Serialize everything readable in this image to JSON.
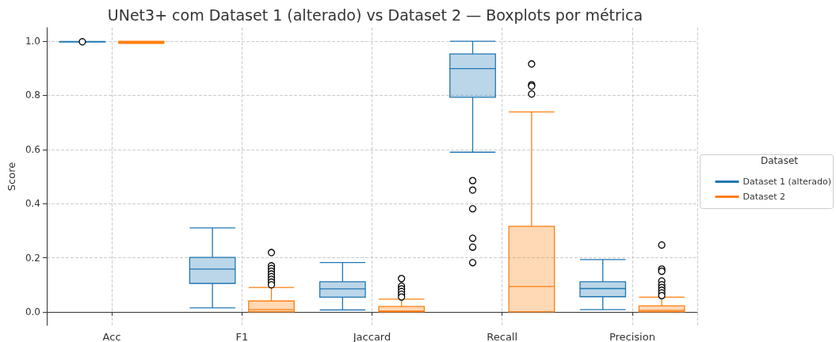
{
  "chart_data": {
    "type": "box",
    "title": "UNet3+ com Dataset 1 (alterado) vs Dataset 2 — Boxplots por métrica",
    "ylabel": "Score",
    "legend_title": "Dataset",
    "categories": [
      "Acc",
      "F1",
      "Jaccard",
      "Recall",
      "Precision"
    ],
    "series": [
      {
        "name": "Dataset 1 (alterado)",
        "color": "#1f77b4",
        "boxes": [
          {
            "low": 0.997,
            "q1": 0.997,
            "median": 0.998,
            "q3": 0.998,
            "high": 0.999,
            "outliers": [
              0.998
            ]
          },
          {
            "low": 0.015,
            "q1": 0.105,
            "median": 0.158,
            "q3": 0.201,
            "high": 0.31
          },
          {
            "low": 0.007,
            "q1": 0.054,
            "median": 0.085,
            "q3": 0.111,
            "high": 0.182
          },
          {
            "low": 0.59,
            "q1": 0.793,
            "median": 0.899,
            "q3": 0.953,
            "high": 1.0,
            "outliers": [
              0.485,
              0.45,
              0.381,
              0.272,
              0.239,
              0.182
            ]
          },
          {
            "low": 0.008,
            "q1": 0.056,
            "median": 0.086,
            "q3": 0.111,
            "high": 0.193
          }
        ]
      },
      {
        "name": "Dataset 2",
        "color": "#ff7f0e",
        "boxes": [
          {
            "low": 0.992,
            "q1": 0.994,
            "median": 0.997,
            "q3": 0.999,
            "high": 1.0
          },
          {
            "low": 0.0,
            "q1": 0.0,
            "median": 0.008,
            "q3": 0.04,
            "high": 0.09,
            "outliers": [
              0.219,
              0.17,
              0.16,
              0.15,
              0.14,
              0.13,
              0.12,
              0.11,
              0.1
            ]
          },
          {
            "low": 0.0,
            "q1": 0.0,
            "median": 0.003,
            "q3": 0.02,
            "high": 0.047,
            "outliers": [
              0.123,
              0.095,
              0.085,
              0.075,
              0.065,
              0.055
            ]
          },
          {
            "low": 0.0,
            "q1": 0.0,
            "median": 0.094,
            "q3": 0.316,
            "high": 0.739,
            "outliers": [
              0.916,
              0.839,
              0.834,
              0.805
            ]
          },
          {
            "low": 0.0,
            "q1": 0.0,
            "median": 0.005,
            "q3": 0.022,
            "high": 0.054,
            "outliers": [
              0.247,
              0.158,
              0.15,
              0.114,
              0.1,
              0.09,
              0.08,
              0.07,
              0.06
            ]
          }
        ]
      }
    ],
    "ylim": [
      -0.05,
      1.05
    ],
    "yticks": [
      {
        "value": 0,
        "label": "0.0"
      },
      {
        "value": 0.2,
        "label": "0.2"
      },
      {
        "value": 0.4,
        "label": "0.4"
      },
      {
        "value": 0.6,
        "label": "0.6"
      },
      {
        "value": 0.8,
        "label": "0.8"
      },
      {
        "value": 1,
        "label": "1.0"
      }
    ],
    "grid": true,
    "legend": "right"
  }
}
